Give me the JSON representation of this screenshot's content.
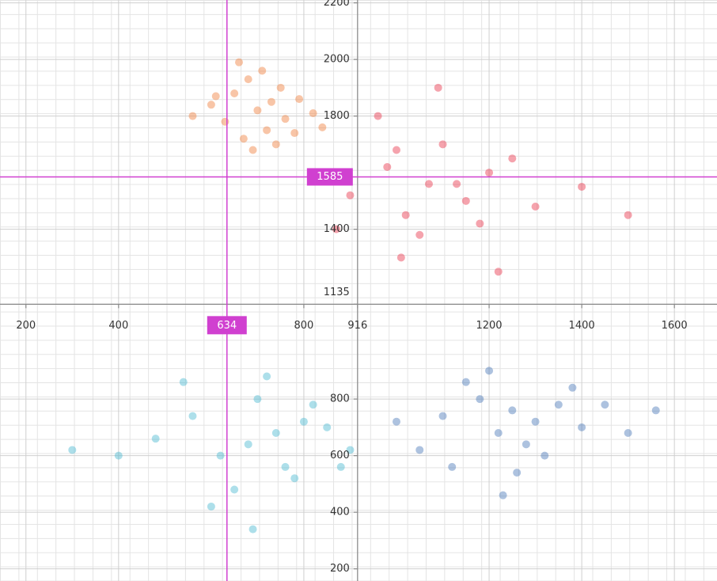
{
  "chart_data": {
    "type": "scatter",
    "xlim": [
      144,
      1692
    ],
    "ylim": [
      157,
      2210
    ],
    "xticks": [
      200,
      400,
      800,
      916,
      1200,
      1400,
      1600
    ],
    "yticks": [
      200,
      400,
      600,
      800,
      1135,
      1400,
      1800,
      2000,
      2200
    ],
    "axes_at": {
      "x": 916,
      "y": 1135
    },
    "grid": true,
    "crosshair": {
      "x": 634,
      "y": 1585,
      "color": "#d040d0"
    },
    "series": [
      {
        "color": "#f07f3c",
        "x": [
          700,
          650,
          760,
          720,
          600,
          680,
          790,
          740,
          630,
          710,
          820,
          560,
          670,
          750,
          690,
          610,
          780,
          730,
          660,
          840
        ],
        "values": [
          1820,
          1880,
          1790,
          1750,
          1840,
          1930,
          1860,
          1700,
          1780,
          1960,
          1810,
          1800,
          1720,
          1900,
          1680,
          1870,
          1740,
          1850,
          1990,
          1760
        ]
      },
      {
        "color": "#e8344a",
        "x": [
          1070,
          980,
          1150,
          1020,
          1200,
          1100,
          900,
          1300,
          1050,
          1130,
          960,
          1250,
          1010,
          1180,
          870,
          1400,
          1090,
          1220,
          1000,
          1500
        ],
        "values": [
          1560,
          1620,
          1500,
          1450,
          1600,
          1700,
          1520,
          1480,
          1380,
          1560,
          1800,
          1650,
          1300,
          1420,
          1400,
          1550,
          1900,
          1250,
          1680,
          1450
        ]
      },
      {
        "color": "#4ab8d0",
        "x": [
          740,
          680,
          800,
          620,
          760,
          850,
          560,
          700,
          900,
          650,
          480,
          780,
          720,
          600,
          820,
          400,
          690,
          880,
          540,
          300
        ],
        "values": [
          680,
          640,
          720,
          600,
          560,
          700,
          740,
          800,
          620,
          480,
          660,
          520,
          880,
          420,
          780,
          600,
          340,
          560,
          860,
          620
        ]
      },
      {
        "color": "#4a78b8",
        "x": [
          1250,
          1180,
          1300,
          1220,
          1350,
          1100,
          1280,
          1400,
          1150,
          1320,
          1000,
          1450,
          1200,
          1260,
          1380,
          1050,
          1500,
          1230,
          1120,
          1560
        ],
        "values": [
          760,
          800,
          720,
          680,
          780,
          740,
          640,
          700,
          860,
          600,
          720,
          780,
          900,
          540,
          840,
          620,
          680,
          460,
          560,
          760
        ]
      }
    ]
  }
}
